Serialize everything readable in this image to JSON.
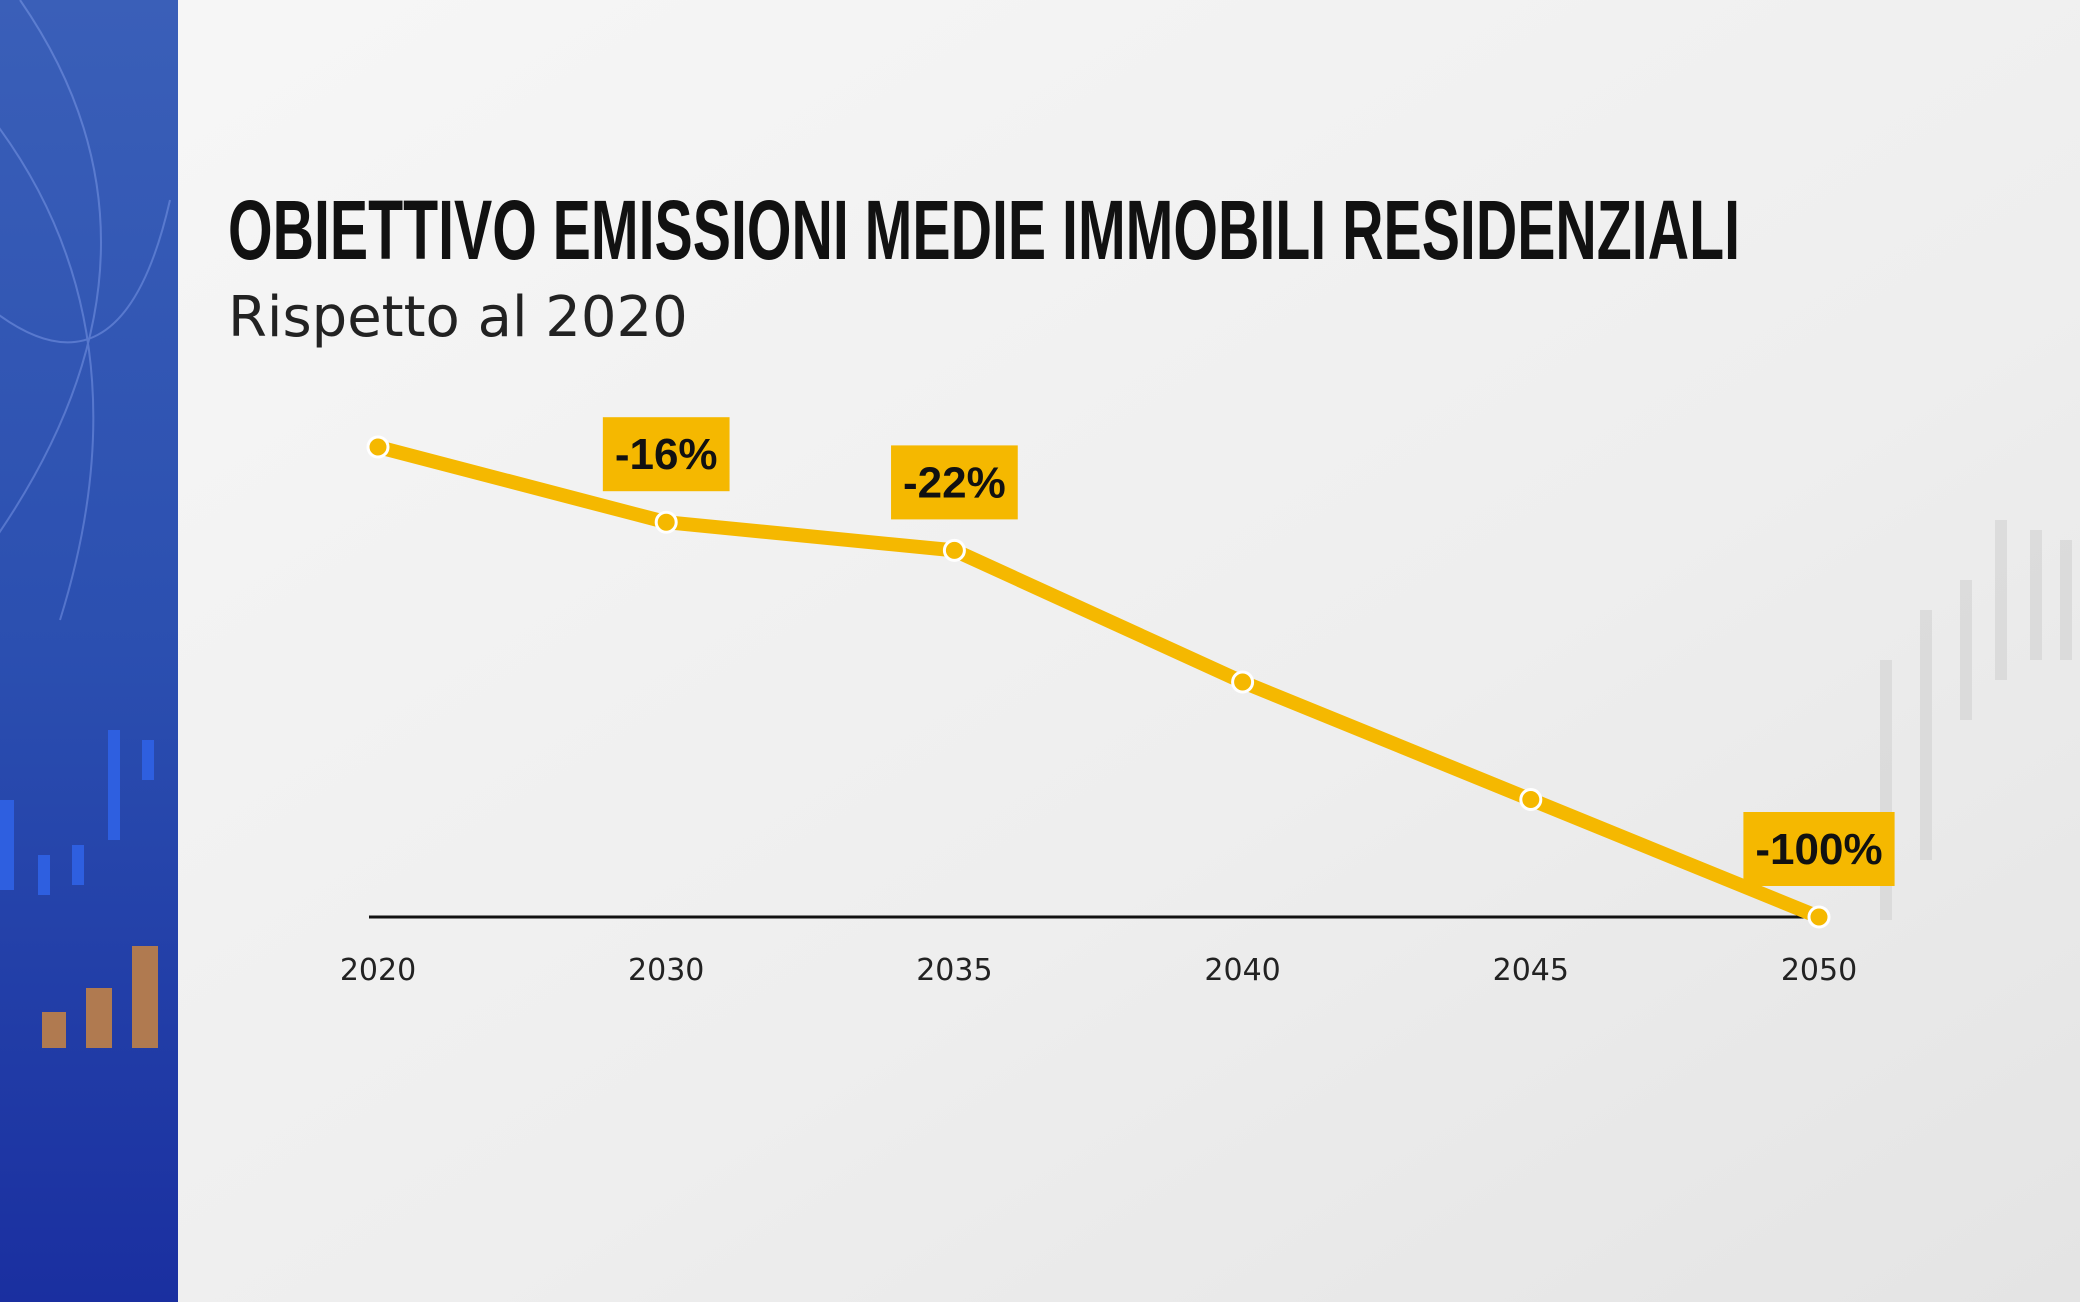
{
  "chart_data": {
    "type": "line",
    "title": "OBIETTIVO EMISSIONI MEDIE IMMOBILI RESIDENZIALI",
    "subtitle": "Rispetto al 2020",
    "categories": [
      "2020",
      "2030",
      "2035",
      "2040",
      "2045",
      "2050"
    ],
    "values": [
      0,
      -16,
      -22,
      -50,
      -75,
      -100
    ],
    "value_labels": [
      null,
      "-16%",
      "-22%",
      null,
      null,
      "-100%"
    ],
    "color": "#f5b800",
    "ylim": [
      -100,
      0
    ]
  }
}
